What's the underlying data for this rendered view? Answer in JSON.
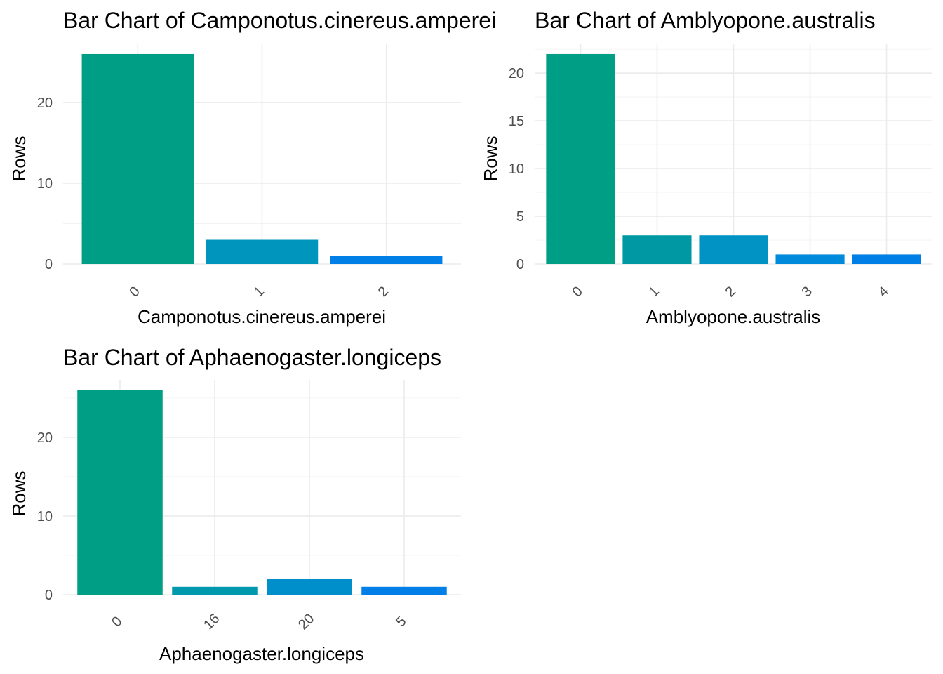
{
  "chart_data": [
    {
      "type": "bar",
      "title": "Bar Chart of Camponotus.cinereus.amperei",
      "xlabel": "Camponotus.cinereus.amperei",
      "ylabel": "Rows",
      "categories": [
        "0",
        "1",
        "2"
      ],
      "values": [
        26,
        3,
        1
      ],
      "colors": [
        "#009E84",
        "#0095BC",
        "#0080E6"
      ],
      "ylim": [
        0,
        27.3
      ],
      "yticks": [
        0,
        10,
        20
      ],
      "grid": true,
      "legend": "none"
    },
    {
      "type": "bar",
      "title": "Bar Chart of Amblyopone.australis",
      "xlabel": "Amblyopone.australis",
      "ylabel": "Rows",
      "categories": [
        "0",
        "1",
        "2",
        "3",
        "4"
      ],
      "values": [
        22,
        3,
        3,
        1,
        1
      ],
      "colors": [
        "#009E84",
        "#0099A3",
        "#0093C4",
        "#008ADB",
        "#0080E6"
      ],
      "ylim": [
        0,
        23.1
      ],
      "yticks": [
        0,
        5,
        10,
        15,
        20
      ],
      "grid": true,
      "legend": "none"
    },
    {
      "type": "bar",
      "title": "Bar Chart of Aphaenogaster.longiceps",
      "xlabel": "Aphaenogaster.longiceps",
      "ylabel": "Rows",
      "categories": [
        "0",
        "16",
        "20",
        "5"
      ],
      "values": [
        26,
        1,
        2,
        1
      ],
      "colors": [
        "#009E84",
        "#0098AC",
        "#008FCB",
        "#0080E6"
      ],
      "ylim": [
        0,
        27.3
      ],
      "yticks": [
        0,
        10,
        20
      ],
      "grid": true,
      "legend": "none"
    }
  ]
}
